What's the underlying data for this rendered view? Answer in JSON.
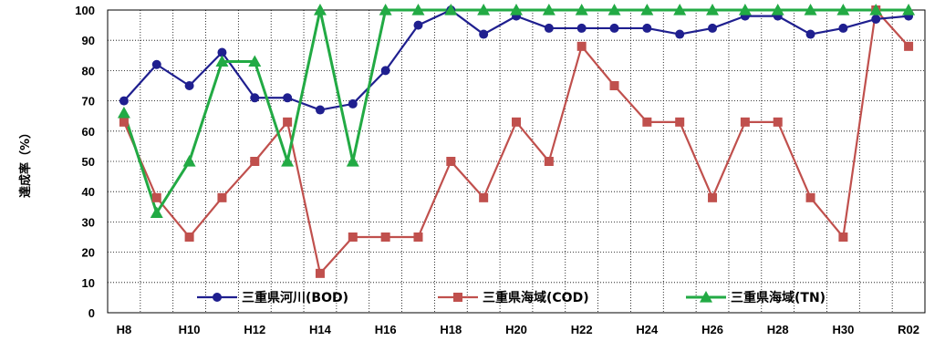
{
  "chart_data": {
    "type": "line",
    "ylabel": "達成率（%）",
    "ylim": [
      0,
      100
    ],
    "ytick_step": 10,
    "grid": true,
    "legend_position": "bottom-inside",
    "categories": [
      "H8",
      "H9",
      "H10",
      "H11",
      "H12",
      "H13",
      "H14",
      "H15",
      "H16",
      "H17",
      "H18",
      "H19",
      "H20",
      "H21",
      "H22",
      "H23",
      "H24",
      "H25",
      "H26",
      "H27",
      "H28",
      "H29",
      "H30",
      "H31",
      "R02"
    ],
    "tick_labels": [
      "H8",
      "",
      "H10",
      "",
      "H12",
      "",
      "H14",
      "",
      "H16",
      "",
      "H18",
      "",
      "H20",
      "",
      "H22",
      "",
      "H24",
      "",
      "H26",
      "",
      "H28",
      "",
      "H30",
      "",
      "R02"
    ],
    "series": [
      {
        "name": "三重県河川(BOD)",
        "color": "#1f1f8f",
        "marker": "circle",
        "values": [
          70,
          82,
          75,
          86,
          71,
          71,
          67,
          69,
          80,
          95,
          100,
          92,
          98,
          94,
          94,
          94,
          94,
          92,
          94,
          98,
          98,
          92,
          94,
          97,
          98
        ]
      },
      {
        "name": "三重県海域(COD)",
        "color": "#c0504d",
        "marker": "square",
        "values": [
          63,
          38,
          25,
          38,
          50,
          63,
          13,
          25,
          25,
          25,
          50,
          38,
          63,
          50,
          88,
          75,
          63,
          63,
          38,
          63,
          63,
          38,
          25,
          100,
          88
        ]
      },
      {
        "name": "三重県海域(TN)",
        "color": "#22aa44",
        "marker": "triangle",
        "values": [
          66,
          33,
          50,
          83,
          83,
          50,
          100,
          50,
          100,
          100,
          100,
          100,
          100,
          100,
          100,
          100,
          100,
          100,
          100,
          100,
          100,
          100,
          100,
          100,
          100
        ]
      }
    ]
  }
}
